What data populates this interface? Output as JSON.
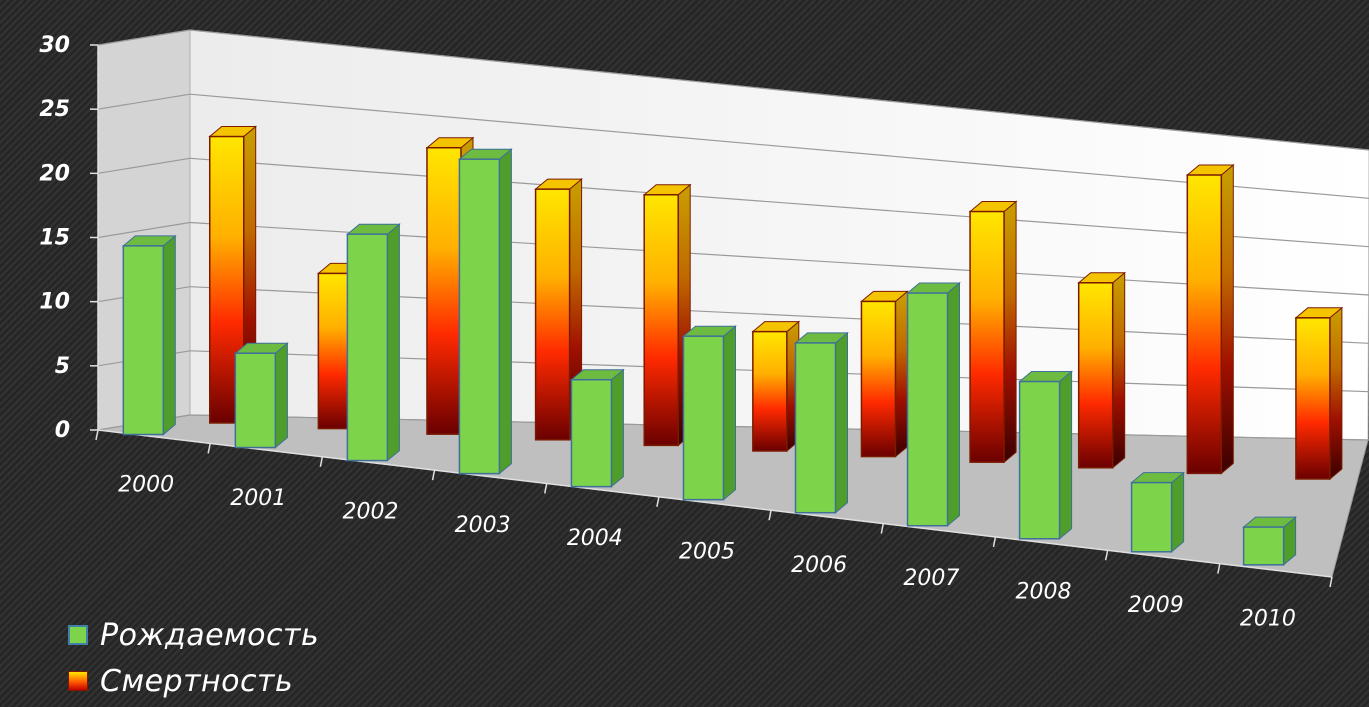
{
  "chart_data": {
    "type": "bar",
    "categories": [
      "2000",
      "2001",
      "2002",
      "2003",
      "2004",
      "2005",
      "2006",
      "2007",
      "2008",
      "2009",
      "2010"
    ],
    "series": [
      {
        "name": "Рождаемость",
        "values": [
          15,
          7.5,
          18,
          25,
          8.5,
          13,
          13.5,
          18.5,
          12.5,
          5.5,
          3
        ],
        "color": "#7dd44a"
      },
      {
        "name": "Смертность",
        "values": [
          24,
          13,
          24,
          21,
          21,
          10,
          13,
          21,
          15.5,
          25,
          13.5
        ],
        "color": "#ff6a00"
      }
    ],
    "yticks": [
      "0",
      "5",
      "10",
      "15",
      "20",
      "25",
      "30"
    ],
    "ylim": [
      0,
      30
    ],
    "grid": true,
    "legend_position": "bottom-left",
    "title": "",
    "xlabel": "",
    "ylabel": ""
  }
}
